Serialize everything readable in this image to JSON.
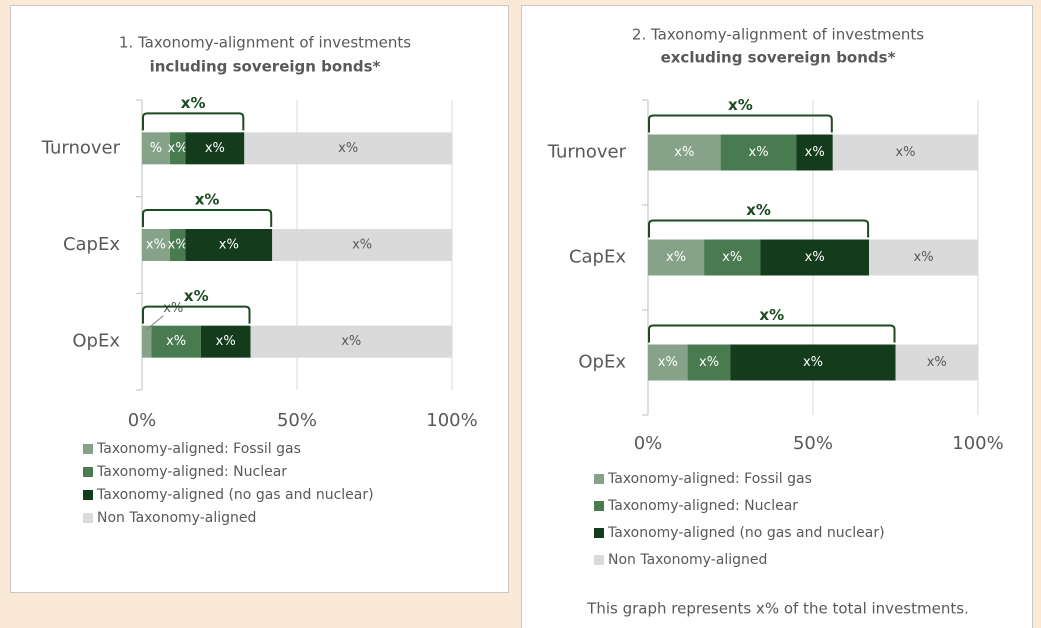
{
  "chart_data": [
    {
      "type": "bar",
      "orientation": "horizontal",
      "stacked": true,
      "title": "1. Taxonomy-alignment of investments",
      "subtitle": "including sovereign bonds*",
      "categories": [
        "Turnover",
        "CapEx",
        "OpEx"
      ],
      "series": [
        {
          "name": "Taxonomy-aligned: Fossil gas",
          "color": "#86a38a",
          "values": [
            9,
            9,
            3
          ],
          "value_labels": [
            "%",
            "x%",
            "x%"
          ]
        },
        {
          "name": "Taxonomy-aligned: Nuclear",
          "color": "#4a7a50",
          "values": [
            5,
            5,
            16
          ],
          "value_labels": [
            "x%",
            "x%",
            "x%"
          ]
        },
        {
          "name": "Taxonomy-aligned (no gas and nuclear)",
          "color": "#143b1c",
          "values": [
            19,
            28,
            16
          ],
          "value_labels": [
            "x%",
            "x%",
            "x%"
          ]
        },
        {
          "name": "Non Taxonomy-aligned",
          "color": "#dadada",
          "values": [
            67,
            58,
            65
          ],
          "value_labels": [
            "x%",
            "x%",
            "x%"
          ]
        }
      ],
      "bracket_labels": [
        "x%",
        "x%",
        "x%"
      ],
      "xlim": [
        0,
        100
      ],
      "xticks": [
        {
          "value": 0,
          "label": "0%"
        },
        {
          "value": 50,
          "label": "50%"
        },
        {
          "value": 100,
          "label": "100%"
        }
      ],
      "grid": true
    },
    {
      "type": "bar",
      "orientation": "horizontal",
      "stacked": true,
      "title": "2. Taxonomy-alignment of investments",
      "subtitle": "excluding sovereign bonds*",
      "categories": [
        "Turnover",
        "CapEx",
        "OpEx"
      ],
      "series": [
        {
          "name": "Taxonomy-aligned: Fossil gas",
          "color": "#86a38a",
          "values": [
            22,
            17,
            12
          ],
          "value_labels": [
            "x%",
            "x%",
            "x%"
          ]
        },
        {
          "name": "Taxonomy-aligned: Nuclear",
          "color": "#4a7a50",
          "values": [
            23,
            17,
            13
          ],
          "value_labels": [
            "x%",
            "x%",
            "x%"
          ]
        },
        {
          "name": "Taxonomy-aligned (no gas and nuclear)",
          "color": "#143b1c",
          "values": [
            11,
            33,
            50
          ],
          "value_labels": [
            "x%",
            "x%",
            "x%"
          ]
        },
        {
          "name": "Non Taxonomy-aligned",
          "color": "#dadada",
          "values": [
            44,
            33,
            25
          ],
          "value_labels": [
            "x%",
            "x%",
            "x%"
          ]
        }
      ],
      "bracket_labels": [
        "x%",
        "x%",
        "x%"
      ],
      "xlim": [
        0,
        100
      ],
      "xticks": [
        {
          "value": 0,
          "label": "0%"
        },
        {
          "value": 50,
          "label": "50%"
        },
        {
          "value": 100,
          "label": "100%"
        }
      ],
      "grid": true,
      "footnote": "This graph represents x% of the total investments."
    }
  ]
}
